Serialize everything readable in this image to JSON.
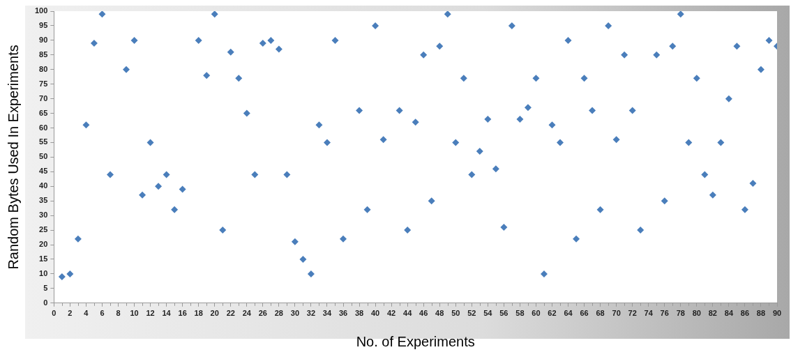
{
  "chart_data": {
    "type": "scatter",
    "xlabel": "No. of Experiments",
    "ylabel": "Random Bytes Used In Experiments",
    "marker": "diamond",
    "grid": false,
    "xlim": [
      0,
      90
    ],
    "ylim": [
      0,
      100
    ],
    "xticks": [
      0,
      2,
      4,
      6,
      8,
      10,
      12,
      14,
      16,
      18,
      20,
      22,
      24,
      26,
      28,
      30,
      32,
      34,
      36,
      38,
      40,
      42,
      44,
      46,
      48,
      50,
      52,
      54,
      56,
      58,
      60,
      62,
      64,
      66,
      68,
      70,
      72,
      74,
      76,
      78,
      80,
      82,
      84,
      86,
      88,
      90
    ],
    "yticks": [
      0,
      5,
      10,
      15,
      20,
      25,
      30,
      35,
      40,
      45,
      50,
      55,
      60,
      65,
      70,
      75,
      80,
      85,
      90,
      95,
      100
    ],
    "series": [
      {
        "color": "#4a7ebb",
        "x": [
          1,
          2,
          3,
          4,
          5,
          6,
          7,
          9,
          10,
          11,
          12,
          13,
          14,
          15,
          16,
          18,
          19,
          20,
          21,
          22,
          23,
          24,
          25,
          26,
          27,
          28,
          29,
          30,
          31,
          32,
          33,
          34,
          35,
          36,
          38,
          39,
          40,
          41,
          43,
          44,
          45,
          46,
          47,
          48,
          49,
          50,
          51,
          52,
          53,
          54,
          55,
          56,
          57,
          58,
          59,
          60,
          61,
          62,
          63,
          64,
          65,
          66,
          67,
          68,
          69,
          70,
          71,
          72,
          73,
          75,
          76,
          77,
          78,
          79,
          80,
          81,
          82,
          83,
          84,
          85,
          86,
          87,
          88,
          89,
          90
        ],
        "values": [
          9,
          10,
          22,
          61,
          89,
          99,
          44,
          80,
          90,
          37,
          55,
          40,
          44,
          32,
          39,
          90,
          78,
          99,
          25,
          86,
          77,
          65,
          44,
          89,
          90,
          87,
          44,
          21,
          15,
          10,
          61,
          55,
          90,
          22,
          66,
          32,
          95,
          56,
          66,
          25,
          62,
          85,
          35,
          88,
          99,
          55,
          77,
          44,
          52,
          63,
          46,
          26,
          95,
          63,
          67,
          77,
          10,
          61,
          55,
          90,
          22,
          77,
          66,
          32,
          95,
          56,
          85,
          66,
          25,
          85,
          35,
          88,
          99,
          55,
          77,
          44,
          37,
          55,
          70,
          88,
          32,
          41,
          80,
          90,
          88
        ]
      }
    ]
  }
}
